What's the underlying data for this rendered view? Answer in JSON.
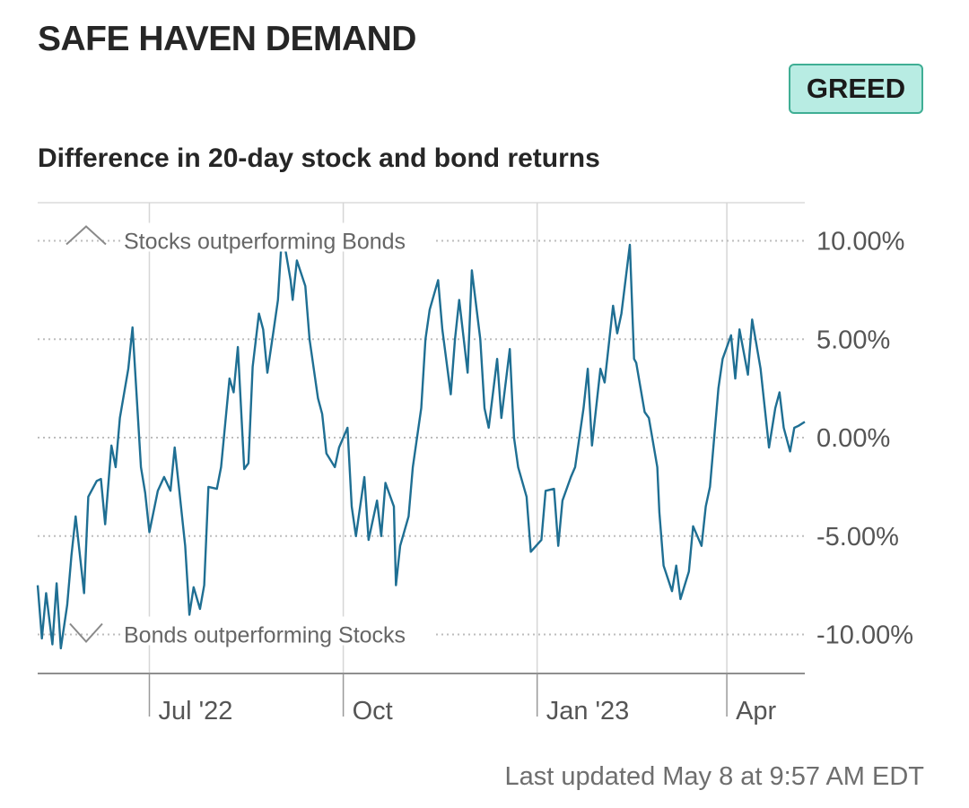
{
  "header": {
    "title": "SAFE HAVEN DEMAND",
    "rating": "GREED",
    "subtitle": "Difference in 20-day stock and bond returns",
    "last_updated": "Last updated May 8 at 9:57 AM EDT"
  },
  "colors": {
    "line": "#1f6f93",
    "badge_fill": "#b8ece3",
    "badge_border": "#3fae94",
    "grid": "#bdbdbd"
  },
  "chart_data": {
    "type": "line",
    "title": "Difference in 20-day stock and bond returns",
    "y_ticks": [
      {
        "value": 10,
        "label": "10.00%"
      },
      {
        "value": 5,
        "label": "5.00%"
      },
      {
        "value": 0,
        "label": "0.00%"
      },
      {
        "value": -5,
        "label": "-5.00%"
      },
      {
        "value": -10,
        "label": "-10.00%"
      }
    ],
    "x_ticks": [
      {
        "date": "2022-07-01",
        "label": "Jul '22"
      },
      {
        "date": "2022-10-01",
        "label": "Oct"
      },
      {
        "date": "2023-01-01",
        "label": "Jan '23"
      },
      {
        "date": "2023-04-01",
        "label": "Apr"
      }
    ],
    "annotations": {
      "top": "Stocks outperforming Bonds",
      "bottom": "Bonds outperforming Stocks"
    },
    "ylim": [
      -11.9,
      11.9
    ],
    "xlim": [
      "2022-05-09",
      "2023-05-08"
    ],
    "series": [
      {
        "values": [
          [
            "2022-05-09",
            -7.5
          ],
          [
            "2022-05-11",
            -10.2
          ],
          [
            "2022-05-13",
            -7.9
          ],
          [
            "2022-05-16",
            -10.5
          ],
          [
            "2022-05-18",
            -7.4
          ],
          [
            "2022-05-20",
            -10.7
          ],
          [
            "2022-05-23",
            -8.5
          ],
          [
            "2022-05-25",
            -6.0
          ],
          [
            "2022-05-27",
            -4.0
          ],
          [
            "2022-05-31",
            -7.9
          ],
          [
            "2022-06-02",
            -3.0
          ],
          [
            "2022-06-06",
            -2.2
          ],
          [
            "2022-06-08",
            -2.1
          ],
          [
            "2022-06-10",
            -4.4
          ],
          [
            "2022-06-13",
            -0.4
          ],
          [
            "2022-06-15",
            -1.5
          ],
          [
            "2022-06-17",
            1.0
          ],
          [
            "2022-06-21",
            3.5
          ],
          [
            "2022-06-23",
            5.6
          ],
          [
            "2022-06-27",
            -1.5
          ],
          [
            "2022-06-29",
            -2.8
          ],
          [
            "2022-07-01",
            -4.8
          ],
          [
            "2022-07-05",
            -2.7
          ],
          [
            "2022-07-08",
            -2.0
          ],
          [
            "2022-07-11",
            -2.7
          ],
          [
            "2022-07-13",
            -0.5
          ],
          [
            "2022-07-15",
            -2.5
          ],
          [
            "2022-07-18",
            -5.5
          ],
          [
            "2022-07-20",
            -9.0
          ],
          [
            "2022-07-22",
            -7.6
          ],
          [
            "2022-07-25",
            -8.7
          ],
          [
            "2022-07-27",
            -7.5
          ],
          [
            "2022-07-29",
            -2.5
          ],
          [
            "2022-08-02",
            -2.6
          ],
          [
            "2022-08-04",
            -1.5
          ],
          [
            "2022-08-08",
            3.0
          ],
          [
            "2022-08-10",
            2.3
          ],
          [
            "2022-08-12",
            4.6
          ],
          [
            "2022-08-15",
            -1.6
          ],
          [
            "2022-08-17",
            -1.3
          ],
          [
            "2022-08-19",
            3.6
          ],
          [
            "2022-08-22",
            6.3
          ],
          [
            "2022-08-24",
            5.5
          ],
          [
            "2022-08-26",
            3.3
          ],
          [
            "2022-08-29",
            5.5
          ],
          [
            "2022-08-31",
            7.0
          ],
          [
            "2022-09-02",
            10.5
          ],
          [
            "2022-09-06",
            8.0
          ],
          [
            "2022-09-07",
            7.0
          ],
          [
            "2022-09-09",
            9.0
          ],
          [
            "2022-09-13",
            7.7
          ],
          [
            "2022-09-15",
            5.0
          ],
          [
            "2022-09-19",
            2.0
          ],
          [
            "2022-09-21",
            1.2
          ],
          [
            "2022-09-23",
            -0.8
          ],
          [
            "2022-09-27",
            -1.5
          ],
          [
            "2022-09-29",
            -0.5
          ],
          [
            "2022-10-03",
            0.5
          ],
          [
            "2022-10-05",
            -3.5
          ],
          [
            "2022-10-07",
            -5.0
          ],
          [
            "2022-10-11",
            -2.0
          ],
          [
            "2022-10-13",
            -5.2
          ],
          [
            "2022-10-17",
            -3.2
          ],
          [
            "2022-10-19",
            -5.0
          ],
          [
            "2022-10-21",
            -2.3
          ],
          [
            "2022-10-25",
            -3.5
          ],
          [
            "2022-10-26",
            -7.5
          ],
          [
            "2022-10-28",
            -5.5
          ],
          [
            "2022-11-01",
            -4.0
          ],
          [
            "2022-11-03",
            -1.5
          ],
          [
            "2022-11-07",
            1.5
          ],
          [
            "2022-11-09",
            5.0
          ],
          [
            "2022-11-11",
            6.5
          ],
          [
            "2022-11-15",
            8.0
          ],
          [
            "2022-11-17",
            5.5
          ],
          [
            "2022-11-21",
            2.2
          ],
          [
            "2022-11-23",
            5.0
          ],
          [
            "2022-11-25",
            7.0
          ],
          [
            "2022-11-29",
            3.3
          ],
          [
            "2022-12-01",
            8.5
          ],
          [
            "2022-12-05",
            5.0
          ],
          [
            "2022-12-07",
            1.5
          ],
          [
            "2022-12-09",
            0.5
          ],
          [
            "2022-12-13",
            4.0
          ],
          [
            "2022-12-15",
            1.0
          ],
          [
            "2022-12-19",
            4.5
          ],
          [
            "2022-12-21",
            0.0
          ],
          [
            "2022-12-23",
            -1.5
          ],
          [
            "2022-12-27",
            -3.0
          ],
          [
            "2022-12-29",
            -5.8
          ],
          [
            "2023-01-03",
            -5.2
          ],
          [
            "2023-01-05",
            -2.7
          ],
          [
            "2023-01-09",
            -2.6
          ],
          [
            "2023-01-11",
            -5.5
          ],
          [
            "2023-01-13",
            -3.2
          ],
          [
            "2023-01-17",
            -2.0
          ],
          [
            "2023-01-19",
            -1.5
          ],
          [
            "2023-01-23",
            1.5
          ],
          [
            "2023-01-25",
            3.5
          ],
          [
            "2023-01-27",
            -0.4
          ],
          [
            "2023-01-31",
            3.5
          ],
          [
            "2023-02-02",
            2.8
          ],
          [
            "2023-02-06",
            6.7
          ],
          [
            "2023-02-08",
            5.3
          ],
          [
            "2023-02-10",
            6.3
          ],
          [
            "2023-02-14",
            9.8
          ],
          [
            "2023-02-16",
            4.0
          ],
          [
            "2023-02-17",
            3.8
          ],
          [
            "2023-02-21",
            1.3
          ],
          [
            "2023-02-23",
            1.0
          ],
          [
            "2023-02-27",
            -1.5
          ],
          [
            "2023-02-28",
            -3.8
          ],
          [
            "2023-03-02",
            -6.5
          ],
          [
            "2023-03-06",
            -7.8
          ],
          [
            "2023-03-08",
            -6.5
          ],
          [
            "2023-03-10",
            -8.2
          ],
          [
            "2023-03-14",
            -6.8
          ],
          [
            "2023-03-16",
            -4.5
          ],
          [
            "2023-03-20",
            -5.5
          ],
          [
            "2023-03-22",
            -3.5
          ],
          [
            "2023-03-24",
            -2.5
          ],
          [
            "2023-03-28",
            2.5
          ],
          [
            "2023-03-30",
            4.0
          ],
          [
            "2023-04-03",
            5.2
          ],
          [
            "2023-04-05",
            3.0
          ],
          [
            "2023-04-07",
            5.5
          ],
          [
            "2023-04-11",
            3.2
          ],
          [
            "2023-04-13",
            6.0
          ],
          [
            "2023-04-17",
            3.5
          ],
          [
            "2023-04-19",
            1.5
          ],
          [
            "2023-04-21",
            -0.5
          ],
          [
            "2023-04-24",
            1.5
          ],
          [
            "2023-04-26",
            2.3
          ],
          [
            "2023-04-28",
            0.5
          ],
          [
            "2023-05-01",
            -0.7
          ],
          [
            "2023-05-03",
            0.5
          ],
          [
            "2023-05-05",
            0.6
          ],
          [
            "2023-05-08",
            0.8
          ]
        ]
      }
    ]
  }
}
